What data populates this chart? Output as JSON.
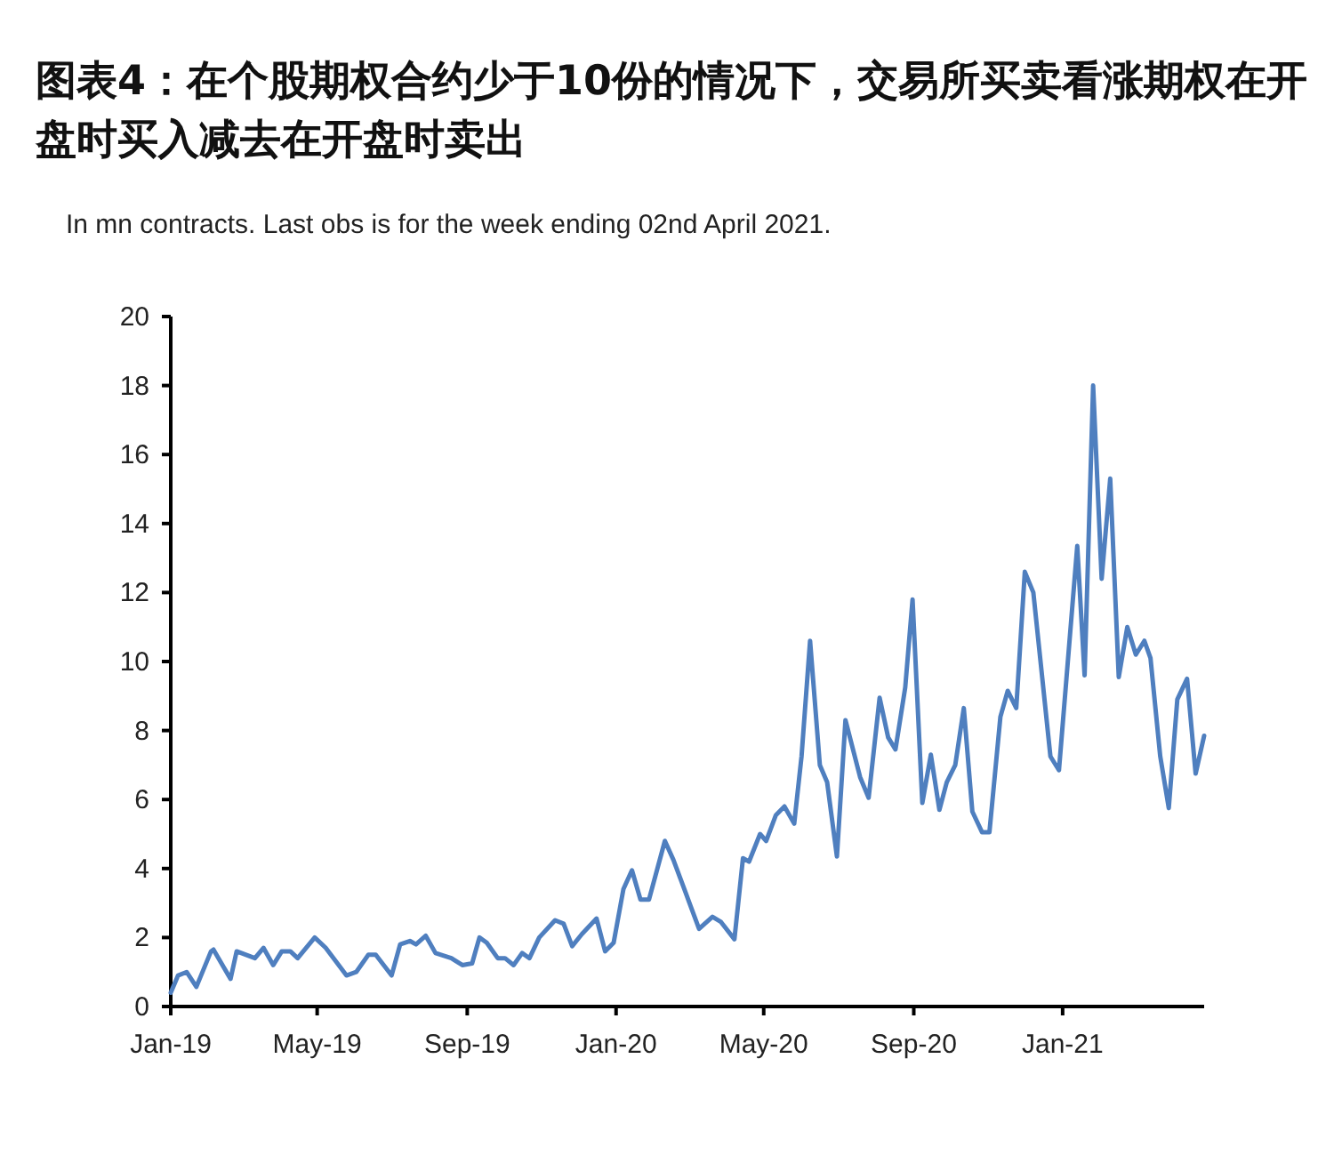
{
  "chart_data": {
    "type": "line",
    "title": "图表4：在个股期权合约少于10份的情况下，交易所买卖看涨期权在开盘时买入减去在开盘时卖出",
    "subtitle": "In mn contracts. Last obs is for the week ending 02nd April 2021.",
    "x": [
      "2019-01-01",
      "2019-01-07",
      "2019-01-14",
      "2019-01-22",
      "2019-02-03",
      "2019-02-05",
      "2019-02-19",
      "2019-02-24",
      "2019-03-11",
      "2019-03-18",
      "2019-03-26",
      "2019-04-02",
      "2019-04-09",
      "2019-04-15",
      "2019-04-29",
      "2019-05-08",
      "2019-05-25",
      "2019-06-02",
      "2019-06-12",
      "2019-06-18",
      "2019-07-01",
      "2019-07-08",
      "2019-07-16",
      "2019-07-21",
      "2019-07-29",
      "2019-08-06",
      "2019-08-19",
      "2019-08-28",
      "2019-09-05",
      "2019-09-11",
      "2019-09-17",
      "2019-09-26",
      "2019-10-02",
      "2019-10-09",
      "2019-10-16",
      "2019-10-22",
      "2019-10-30",
      "2019-11-12",
      "2019-11-19",
      "2019-11-26",
      "2019-12-04",
      "2019-12-16",
      "2019-12-23",
      "2019-12-30",
      "2020-01-07",
      "2020-01-14",
      "2020-01-21",
      "2020-01-28",
      "2020-02-10",
      "2020-02-17",
      "2020-02-27",
      "2020-03-09",
      "2020-03-20",
      "2020-03-27",
      "2020-04-07",
      "2020-04-14",
      "2020-04-19",
      "2020-04-28",
      "2020-05-03",
      "2020-05-11",
      "2020-05-18",
      "2020-05-26",
      "2020-06-01",
      "2020-06-08",
      "2020-06-16",
      "2020-06-22",
      "2020-06-30",
      "2020-07-07",
      "2020-07-19",
      "2020-07-26",
      "2020-08-04",
      "2020-08-11",
      "2020-08-17",
      "2020-08-25",
      "2020-08-31",
      "2020-09-08",
      "2020-09-15",
      "2020-09-22",
      "2020-09-28",
      "2020-10-05",
      "2020-10-12",
      "2020-10-19",
      "2020-10-27",
      "2020-11-02",
      "2020-11-11",
      "2020-11-17",
      "2020-11-24",
      "2020-12-01",
      "2020-12-08",
      "2020-12-22",
      "2020-12-29",
      "2021-01-13",
      "2021-01-19",
      "2021-01-26",
      "2021-02-02",
      "2021-02-09",
      "2021-02-16",
      "2021-02-23",
      "2021-03-02",
      "2021-03-09",
      "2021-03-14",
      "2021-03-22",
      "2021-03-29",
      "2021-04-05",
      "2021-04-13",
      "2021-04-20",
      "2021-04-27"
    ],
    "series": [
      {
        "color": "#4f7fbf",
        "values": [
          0.4,
          0.9,
          1.0,
          0.57,
          1.6,
          1.65,
          0.8,
          1.6,
          1.4,
          1.7,
          1.2,
          1.6,
          1.6,
          1.4,
          2.0,
          1.7,
          0.9,
          1.0,
          1.5,
          1.5,
          0.9,
          1.8,
          1.9,
          1.8,
          2.05,
          1.55,
          1.4,
          1.2,
          1.25,
          2.0,
          1.85,
          1.4,
          1.4,
          1.2,
          1.55,
          1.4,
          2.0,
          2.5,
          2.4,
          1.75,
          2.1,
          2.55,
          1.6,
          1.85,
          3.4,
          3.95,
          3.1,
          3.1,
          4.8,
          4.25,
          3.3,
          2.25,
          2.6,
          2.45,
          1.95,
          4.3,
          4.2,
          5.0,
          4.8,
          5.55,
          5.8,
          5.3,
          7.25,
          10.6,
          7.0,
          6.5,
          4.35,
          8.3,
          6.65,
          6.05,
          8.95,
          7.8,
          7.45,
          9.25,
          11.8,
          5.9,
          7.3,
          5.7,
          6.5,
          7.0,
          8.65,
          5.65,
          5.05,
          5.05,
          8.4,
          9.15,
          8.65,
          12.6,
          12.0,
          7.25,
          6.85,
          13.35,
          9.6,
          18.0,
          12.4,
          15.3,
          9.55,
          11.0,
          10.2,
          10.6,
          10.1,
          7.25,
          5.75,
          8.9,
          9.5,
          6.75,
          7.85
        ]
      }
    ],
    "xlim": [
      "2019-01-01",
      "2021-04-27"
    ],
    "xticks": [
      {
        "value": "2019-01-01",
        "label": "Jan-19"
      },
      {
        "value": "2019-05-01",
        "label": "May-19"
      },
      {
        "value": "2019-09-01",
        "label": "Sep-19"
      },
      {
        "value": "2020-01-01",
        "label": "Jan-20"
      },
      {
        "value": "2020-05-01",
        "label": "May-20"
      },
      {
        "value": "2020-09-01",
        "label": "Sep-20"
      },
      {
        "value": "2021-01-01",
        "label": "Jan-21"
      }
    ],
    "ylim": [
      0,
      20
    ],
    "yticks": [
      0,
      2,
      4,
      6,
      8,
      10,
      12,
      14,
      16,
      18,
      20
    ]
  }
}
